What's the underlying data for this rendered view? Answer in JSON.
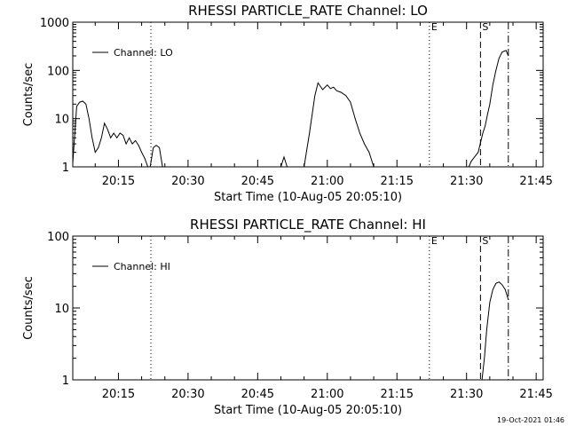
{
  "footer": {
    "timestamp": "19-Oct-2021 01:46"
  },
  "chart_data": [
    {
      "type": "line",
      "title": "RHESSI PARTICLE_RATE Channel: LO",
      "xlabel": "Start Time (10-Aug-05 20:05:10)",
      "ylabel": "Counts/sec",
      "y_scale": "log",
      "ylim": [
        1,
        1000
      ],
      "xlim": [
        "20:05:10",
        "21:46:30"
      ],
      "x_ticks": [
        "20:15",
        "20:30",
        "20:45",
        "21:00",
        "21:15",
        "21:30",
        "21:45"
      ],
      "y_ticks": [
        "1",
        "10",
        "100",
        "1000"
      ],
      "legend": {
        "position": "top-left",
        "entries": [
          "Channel: LO"
        ]
      },
      "grid": false,
      "markers": [
        {
          "time": "20:22:00",
          "style": "dotted",
          "label": ""
        },
        {
          "time": "21:22:00",
          "style": "dotted",
          "label": "E"
        },
        {
          "time": "21:33:00",
          "style": "dashed",
          "label": "S"
        },
        {
          "time": "21:39:00",
          "style": "dash-dot",
          "label": ""
        }
      ],
      "series": [
        {
          "name": "Channel: LO",
          "segments": [
            {
              "x": [
                "20:05:10",
                "20:06:00",
                "20:06:40",
                "20:07:20",
                "20:08:00",
                "20:08:40",
                "20:09:20",
                "20:10:00",
                "20:10:40",
                "20:11:20",
                "20:12:00",
                "20:12:40",
                "20:13:20",
                "20:14:00",
                "20:14:40",
                "20:15:20",
                "20:16:00",
                "20:16:40",
                "20:17:20",
                "20:18:00",
                "20:18:40",
                "20:19:20",
                "20:20:00",
                "20:20:40",
                "20:21:20"
              ],
              "y": [
                1.2,
                18,
                22,
                23,
                20,
                10,
                4,
                2,
                2.5,
                4,
                8,
                6,
                4,
                5,
                4,
                5,
                4.5,
                3,
                4,
                3,
                3.5,
                2.8,
                2,
                1.5,
                1
              ]
            },
            {
              "x": [
                "20:21:50",
                "20:22:30",
                "20:23:10",
                "20:23:50",
                "20:24:30"
              ],
              "y": [
                1,
                2.5,
                2.8,
                2.5,
                1
              ]
            },
            {
              "x": [
                "20:50:00",
                "20:50:40",
                "20:51:20"
              ],
              "y": [
                1,
                1.6,
                1
              ]
            },
            {
              "x": [
                "20:55:00",
                "20:56:10",
                "20:57:20",
                "20:58:00",
                "20:59:00",
                "21:00:00",
                "21:00:40",
                "21:01:20",
                "21:02:00",
                "21:03:00",
                "21:04:00",
                "21:05:00",
                "21:06:00",
                "21:07:00",
                "21:08:00",
                "21:09:00",
                "21:10:00"
              ],
              "y": [
                1,
                5,
                30,
                55,
                40,
                50,
                42,
                45,
                38,
                35,
                30,
                22,
                10,
                5,
                3,
                2,
                1
              ]
            },
            {
              "x": [
                "21:29:10",
                "21:30:30",
                "21:31:00",
                "21:31:30",
                "21:32:30",
                "21:33:30",
                "21:34:00",
                "21:34:30",
                "21:35:00",
                "21:35:40",
                "21:36:20",
                "21:37:00",
                "21:37:40",
                "21:38:30",
                "21:39:00"
              ],
              "y": [
                1,
                1,
                1.3,
                1.5,
                2,
                5,
                7,
                12,
                20,
                50,
                100,
                180,
                240,
                260,
                200
              ]
            }
          ]
        }
      ]
    },
    {
      "type": "line",
      "title": "RHESSI PARTICLE_RATE Channel: HI",
      "xlabel": "Start Time (10-Aug-05 20:05:10)",
      "ylabel": "Counts/sec",
      "y_scale": "log",
      "ylim": [
        1,
        100
      ],
      "xlim": [
        "20:05:10",
        "21:46:30"
      ],
      "x_ticks": [
        "20:15",
        "20:30",
        "20:45",
        "21:00",
        "21:15",
        "21:30",
        "21:45"
      ],
      "y_ticks": [
        "1",
        "10",
        "100"
      ],
      "legend": {
        "position": "top-left",
        "entries": [
          "Channel: HI"
        ]
      },
      "grid": false,
      "markers": [
        {
          "time": "20:22:00",
          "style": "dotted",
          "label": ""
        },
        {
          "time": "21:22:00",
          "style": "dotted",
          "label": "E"
        },
        {
          "time": "21:33:00",
          "style": "dashed",
          "label": "S"
        },
        {
          "time": "21:39:00",
          "style": "dash-dot",
          "label": ""
        }
      ],
      "series": [
        {
          "name": "Channel: HI",
          "segments": [
            {
              "x": [
                "21:33:20",
                "21:33:50",
                "21:34:20",
                "21:35:00",
                "21:35:40",
                "21:36:20",
                "21:37:00",
                "21:37:40",
                "21:38:20",
                "21:39:00"
              ],
              "y": [
                1,
                2,
                5,
                12,
                18,
                22,
                23,
                21,
                18,
                13
              ]
            }
          ]
        }
      ]
    }
  ]
}
